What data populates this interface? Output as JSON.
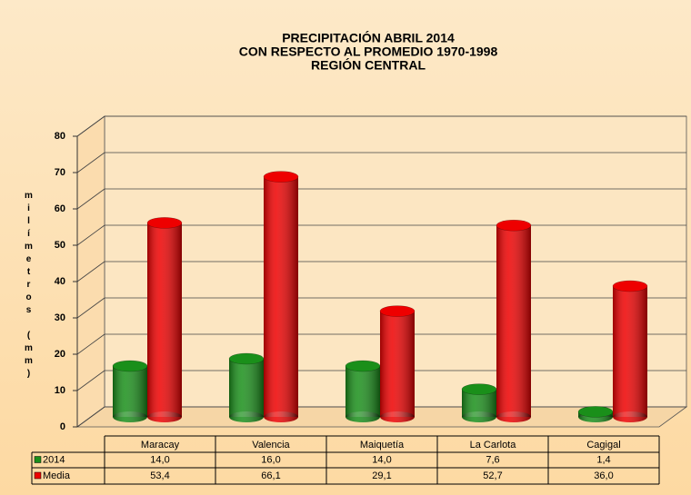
{
  "chart_data": {
    "type": "bar",
    "title": [
      "PRECIPITACIÓN ABRIL 2014",
      "CON RESPECTO AL PROMEDIO 1970-1998",
      "REGIÓN CENTRAL"
    ],
    "ylabel": "milímetros (mm)",
    "categories": [
      "Maracay",
      "Valencia",
      "Maiquetía",
      "La Carlota",
      "Cagigal"
    ],
    "series": [
      {
        "name": "2014",
        "color": "#1a8f1a",
        "values": [
          14.0,
          16.0,
          14.0,
          7.6,
          1.4
        ],
        "value_labels": [
          "14,0",
          "16,0",
          "14,0",
          "7,6",
          "1,4"
        ]
      },
      {
        "name": "Media",
        "color": "#ee0000",
        "values": [
          53.4,
          66.1,
          29.1,
          52.7,
          36.0
        ],
        "value_labels": [
          "53,4",
          "66,1",
          "29,1",
          "52,7",
          "36,0"
        ]
      }
    ],
    "ylim": [
      0,
      80
    ],
    "yticks": [
      0,
      10,
      20,
      30,
      40,
      50,
      60,
      70,
      80
    ],
    "grid": true
  }
}
